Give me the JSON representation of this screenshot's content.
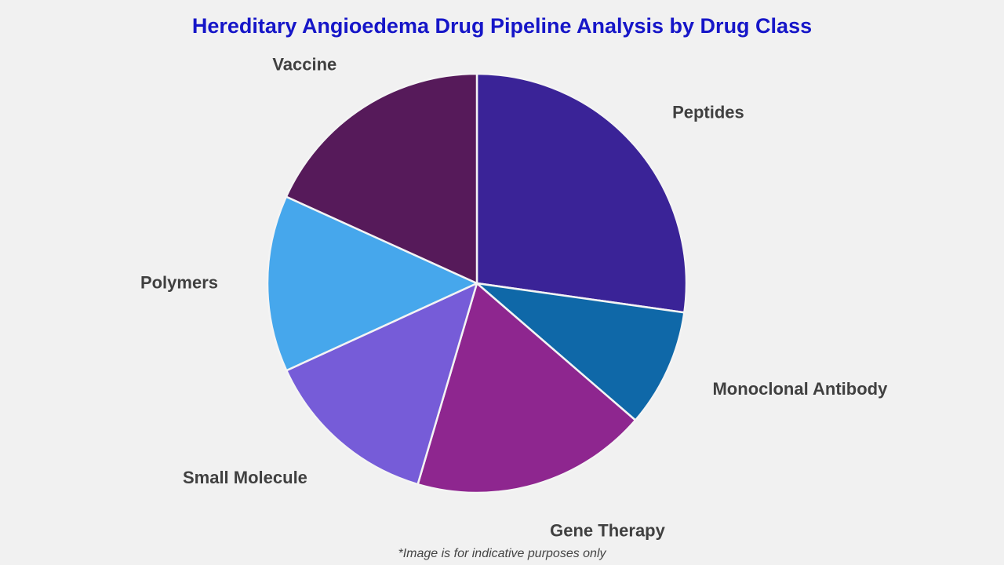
{
  "chart_data": {
    "type": "pie",
    "title": "Hereditary Angioedema Drug Pipeline Analysis by Drug Class",
    "categories": [
      "Peptides",
      "Monoclonal Antibody",
      "Gene Therapy",
      "Small Molecule",
      "Polymers",
      "Vaccine"
    ],
    "values": [
      27.2,
      9.1,
      18.2,
      13.6,
      13.6,
      18.2
    ],
    "colors": [
      "#3a2397",
      "#0f68a8",
      "#8e268f",
      "#765cd8",
      "#46a7ec",
      "#561a5a"
    ],
    "start_angle_deg": 0,
    "direction": "clockwise",
    "legend": "none",
    "labels": "outside"
  },
  "footnote": "*Image is for indicative purposes only"
}
